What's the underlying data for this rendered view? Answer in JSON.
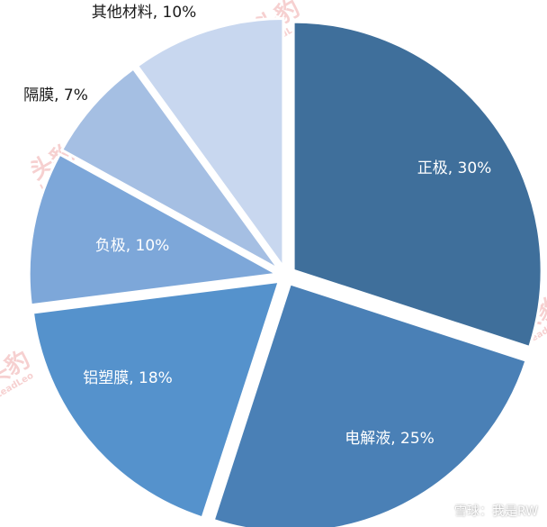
{
  "chart_data": {
    "type": "pie",
    "categories": [
      "正极",
      "电解液",
      "铝塑膜",
      "负极",
      "隔膜",
      "其他材料"
    ],
    "values": [
      30,
      25,
      18,
      10,
      7,
      10
    ],
    "labels": [
      "正极, 30%",
      "电解液, 25%",
      "铝塑膜, 18%",
      "负极, 10%",
      "隔膜, 7%",
      "其他材料, 10%"
    ],
    "colors": [
      "#3f6f9b",
      "#4a80b6",
      "#5592cc",
      "#7da7d9",
      "#a5bfe3",
      "#c8d7ef"
    ],
    "label_colors": [
      "light",
      "light",
      "light",
      "light",
      "dark",
      "dark"
    ],
    "start": "12 o'clock",
    "direction": "clockwise",
    "legend": "none"
  },
  "watermark": {
    "brand": "头豹",
    "sub": "LeadLeo"
  },
  "credit": "雪球：我是RW"
}
